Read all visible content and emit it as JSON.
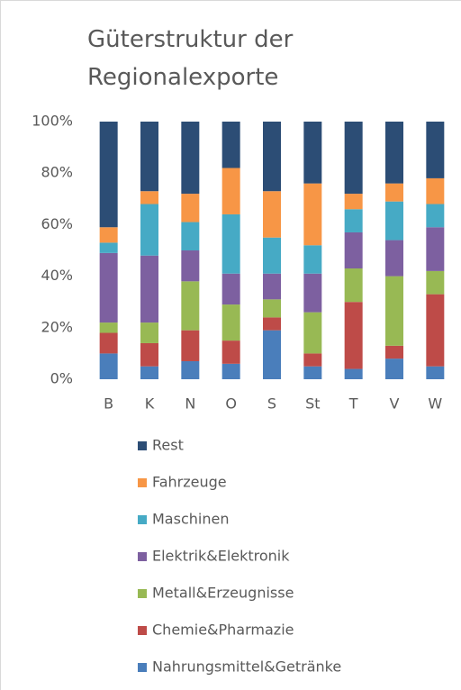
{
  "chart_data": {
    "type": "stacked_bar_percent",
    "title": "Güterstruktur der Regionalexporte",
    "categories": [
      "B",
      "K",
      "N",
      "O",
      "S",
      "St",
      "T",
      "V",
      "W"
    ],
    "series": [
      {
        "name": "Nahrungsmittel&Getränke",
        "color": "#4a7ebb",
        "values": [
          10,
          5,
          7,
          6,
          19,
          5,
          4,
          8,
          5
        ]
      },
      {
        "name": "Chemie&Pharmazie",
        "color": "#be4b48",
        "values": [
          8,
          9,
          12,
          9,
          5,
          5,
          26,
          5,
          28
        ]
      },
      {
        "name": "Metall&Erzeugnisse",
        "color": "#98b954",
        "values": [
          4,
          8,
          19,
          14,
          7,
          16,
          13,
          27,
          9
        ]
      },
      {
        "name": "Elektrik&Elektronik",
        "color": "#7d60a0",
        "values": [
          27,
          26,
          12,
          12,
          10,
          15,
          14,
          14,
          17
        ]
      },
      {
        "name": "Maschinen",
        "color": "#46aac5",
        "values": [
          4,
          20,
          11,
          23,
          14,
          11,
          9,
          15,
          9
        ]
      },
      {
        "name": "Fahrzeuge",
        "color": "#f79646",
        "values": [
          6,
          5,
          11,
          18,
          18,
          24,
          6,
          7,
          10
        ]
      },
      {
        "name": "Rest",
        "color": "#2c4d75",
        "values": [
          41,
          27,
          28,
          18,
          27,
          24,
          28,
          24,
          22
        ]
      }
    ],
    "ylim": [
      0,
      100
    ],
    "yticks": [
      {
        "value": 0,
        "label": "0%"
      },
      {
        "value": 20,
        "label": "20%"
      },
      {
        "value": 40,
        "label": "40%"
      },
      {
        "value": 60,
        "label": "60%"
      },
      {
        "value": 80,
        "label": "80%"
      },
      {
        "value": 100,
        "label": "100%"
      }
    ],
    "grid": false,
    "legend": "bottom"
  }
}
